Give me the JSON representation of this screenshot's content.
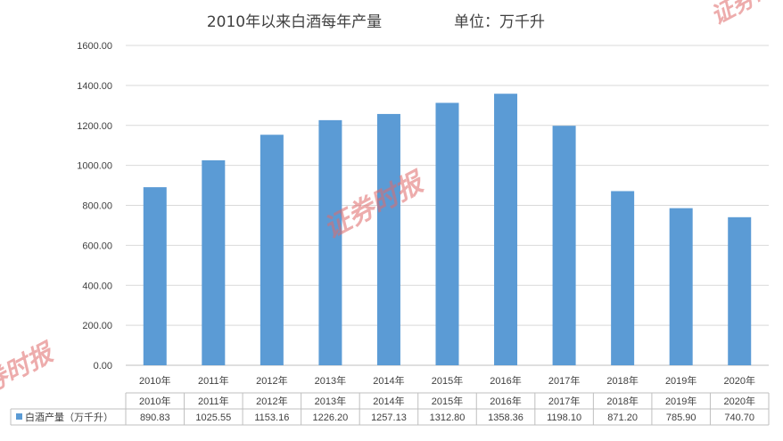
{
  "chart_data": {
    "type": "bar",
    "title": "2010年以来白酒每年产量",
    "unit_label": "单位：万千升",
    "categories": [
      "2010年",
      "2011年",
      "2012年",
      "2013年",
      "2014年",
      "2015年",
      "2016年",
      "2017年",
      "2018年",
      "2019年",
      "2020年"
    ],
    "series": [
      {
        "name": "白酒产量（万千升）",
        "values": [
          890.83,
          1025.55,
          1153.16,
          1226.2,
          1257.13,
          1312.8,
          1358.36,
          1198.1,
          871.2,
          785.9,
          740.7
        ],
        "labels": [
          "890.83",
          "1025.55",
          "1153.16",
          "1226.20",
          "1257.13",
          "1312.80",
          "1358.36",
          "1198.10",
          "871.20",
          "785.90",
          "740.70"
        ]
      }
    ],
    "ylim": [
      0,
      1600
    ],
    "y_ticks": [
      "0.00",
      "200.00",
      "400.00",
      "600.00",
      "800.00",
      "1000.00",
      "1200.00",
      "1400.00",
      "1600.00"
    ],
    "grid": true,
    "data_table": true,
    "bar_color": "#5b9bd5"
  },
  "watermark": {
    "text": "证券时报"
  }
}
